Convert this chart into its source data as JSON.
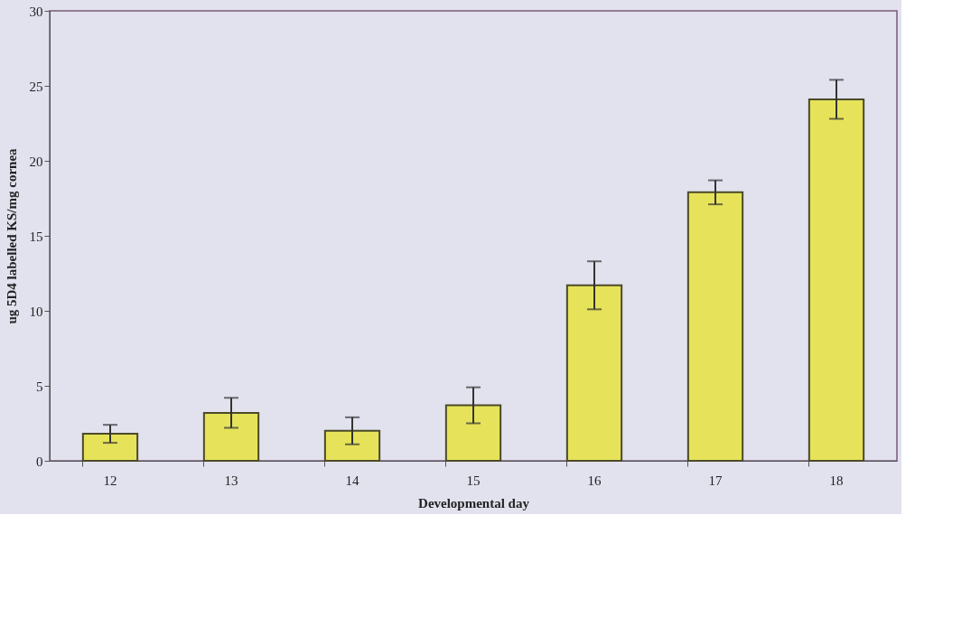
{
  "chart_data": {
    "type": "bar",
    "xlabel": "Developmental day",
    "ylabel": "ug 5D4 labelled KS/mg cornea",
    "categories": [
      "12",
      "13",
      "14",
      "15",
      "16",
      "17",
      "18"
    ],
    "values": [
      1.8,
      3.2,
      2.0,
      3.7,
      11.7,
      17.9,
      24.1
    ],
    "errors": [
      0.6,
      1.0,
      0.9,
      1.2,
      1.6,
      0.8,
      1.3
    ],
    "color": "#e6e35a",
    "ylim": [
      0,
      30
    ],
    "yticks": [
      0,
      5,
      10,
      15,
      20,
      25,
      30
    ],
    "grid": false
  }
}
